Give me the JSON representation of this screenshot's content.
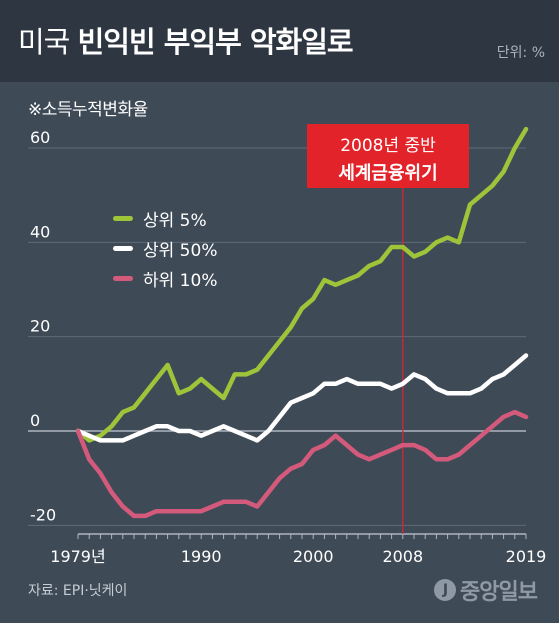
{
  "header": {
    "title_part1": "미국",
    "title_part2": "빈익빈 부익부 악화일로",
    "unit": "단위: %"
  },
  "subtitle": "※소득누적변화율",
  "event": {
    "line1": "2008년 중반",
    "line2": "세계금융위기",
    "color": "#e2242a"
  },
  "source": "자료: EPI·닛케이",
  "logo": {
    "mark": "J",
    "text": "중앙일보"
  },
  "legend": [
    {
      "label": "상위 5%",
      "color": "#9ec43a"
    },
    {
      "label": "상위 50%",
      "color": "#ffffff"
    },
    {
      "label": "하위 10%",
      "color": "#d45a7c"
    }
  ],
  "chart_data": {
    "type": "line",
    "xlim": [
      1979,
      2019
    ],
    "ylim": [
      -20,
      65
    ],
    "yticks": [
      {
        "value": 60,
        "label": "60"
      },
      {
        "value": 40,
        "label": "40"
      },
      {
        "value": 20,
        "label": "20"
      },
      {
        "value": 0,
        "label": "0"
      },
      {
        "value": -20,
        "label": "-20"
      }
    ],
    "xticks": [
      {
        "value": 1979,
        "label": "1979년"
      },
      {
        "value": 1990,
        "label": "1990"
      },
      {
        "value": 2000,
        "label": "2000"
      },
      {
        "value": 2008,
        "label": "2008"
      },
      {
        "value": 2019,
        "label": "2019"
      }
    ],
    "event_x": 2008,
    "x": [
      1979,
      1980,
      1981,
      1982,
      1983,
      1984,
      1985,
      1986,
      1987,
      1988,
      1989,
      1990,
      1991,
      1992,
      1993,
      1994,
      1995,
      1996,
      1997,
      1998,
      1999,
      2000,
      2001,
      2002,
      2003,
      2004,
      2005,
      2006,
      2007,
      2008,
      2009,
      2010,
      2011,
      2012,
      2013,
      2014,
      2015,
      2016,
      2017,
      2018,
      2019
    ],
    "series": [
      {
        "name": "상위 5%",
        "color": "#9ec43a",
        "values": [
          0,
          -2,
          -1,
          1,
          4,
          5,
          8,
          11,
          14,
          8,
          9,
          11,
          9,
          7,
          12,
          12,
          13,
          16,
          19,
          22,
          26,
          28,
          32,
          31,
          32,
          33,
          35,
          36,
          39,
          39,
          37,
          38,
          40,
          41,
          40,
          48,
          50,
          52,
          55,
          60,
          64
        ]
      },
      {
        "name": "상위 50%",
        "color": "#ffffff",
        "values": [
          0,
          -1,
          -2,
          -2,
          -2,
          -1,
          0,
          1,
          1,
          0,
          0,
          -1,
          0,
          1,
          0,
          -1,
          -2,
          0,
          3,
          6,
          7,
          8,
          10,
          10,
          11,
          10,
          10,
          10,
          9,
          10,
          12,
          11,
          9,
          8,
          8,
          8,
          9,
          11,
          12,
          14,
          16
        ]
      },
      {
        "name": "하위 10%",
        "color": "#d45a7c",
        "values": [
          0,
          -6,
          -9,
          -13,
          -16,
          -18,
          -18,
          -17,
          -17,
          -17,
          -17,
          -17,
          -16,
          -15,
          -15,
          -15,
          -16,
          -13,
          -10,
          -8,
          -7,
          -4,
          -3,
          -1,
          -3,
          -5,
          -6,
          -5,
          -4,
          -3,
          -3,
          -4,
          -6,
          -6,
          -5,
          -3,
          -1,
          1,
          3,
          4,
          3
        ]
      }
    ]
  }
}
